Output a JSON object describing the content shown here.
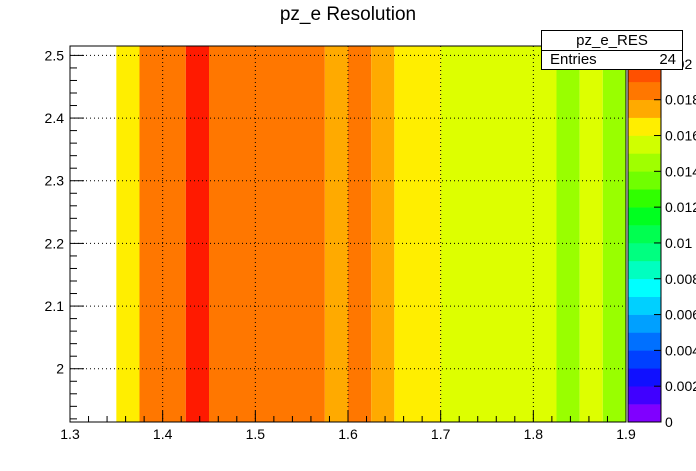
{
  "chart_data": {
    "type": "heatmap",
    "title": "pz_e Resolution",
    "xlim": [
      1.3,
      1.9
    ],
    "ylim": [
      1.915,
      2.515
    ],
    "x_ticks": [
      "1.3",
      "1.4",
      "1.5",
      "1.6",
      "1.7",
      "1.8",
      "1.9"
    ],
    "y_ticks": [
      "2",
      "2.1",
      "2.2",
      "2.3",
      "2.4",
      "2.5"
    ],
    "grid": true,
    "zlim": [
      0,
      0.021
    ],
    "z_ticks": [
      "0",
      "0.002",
      "0.004",
      "0.006",
      "0.008",
      "0.01",
      "0.012",
      "0.014",
      "0.016",
      "0.018",
      "0.02"
    ],
    "colorbar_colors": [
      "#8000ff",
      "#4000ff",
      "#1010ff",
      "#0040ff",
      "#0070ff",
      "#00a0ff",
      "#00d0ff",
      "#00ffff",
      "#00ffc0",
      "#00ff80",
      "#00ff50",
      "#00ff20",
      "#30ff00",
      "#70ff00",
      "#a0ff00",
      "#d0ff00",
      "#ffee00",
      "#ffaa00",
      "#ff7700",
      "#ff5000",
      "#ff2000"
    ],
    "cells": [
      {
        "x0": 1.35,
        "x1": 1.375,
        "z": 0.0164,
        "color": "#ffee00"
      },
      {
        "x0": 1.375,
        "x1": 1.425,
        "z": 0.0192,
        "color": "#ff7700"
      },
      {
        "x0": 1.425,
        "x1": 1.45,
        "z": 0.0208,
        "color": "#ff1a00"
      },
      {
        "x0": 1.45,
        "x1": 1.575,
        "z": 0.0192,
        "color": "#ff7700"
      },
      {
        "x0": 1.575,
        "x1": 1.6,
        "z": 0.0178,
        "color": "#ffaa00"
      },
      {
        "x0": 1.6,
        "x1": 1.625,
        "z": 0.0192,
        "color": "#ff7700"
      },
      {
        "x0": 1.625,
        "x1": 1.65,
        "z": 0.0178,
        "color": "#ffaa00"
      },
      {
        "x0": 1.65,
        "x1": 1.7,
        "z": 0.0164,
        "color": "#ffee00"
      },
      {
        "x0": 1.7,
        "x1": 1.825,
        "z": 0.0152,
        "color": "#ddff00"
      },
      {
        "x0": 1.825,
        "x1": 1.85,
        "z": 0.0142,
        "color": "#99ff00"
      },
      {
        "x0": 1.85,
        "x1": 1.875,
        "z": 0.0152,
        "color": "#ddff00"
      },
      {
        "x0": 1.875,
        "x1": 1.9,
        "z": 0.0142,
        "color": "#99ff00"
      }
    ]
  },
  "stats": {
    "name": "pz_e_RES",
    "entries_label": "Entries",
    "entries_value": "24"
  }
}
